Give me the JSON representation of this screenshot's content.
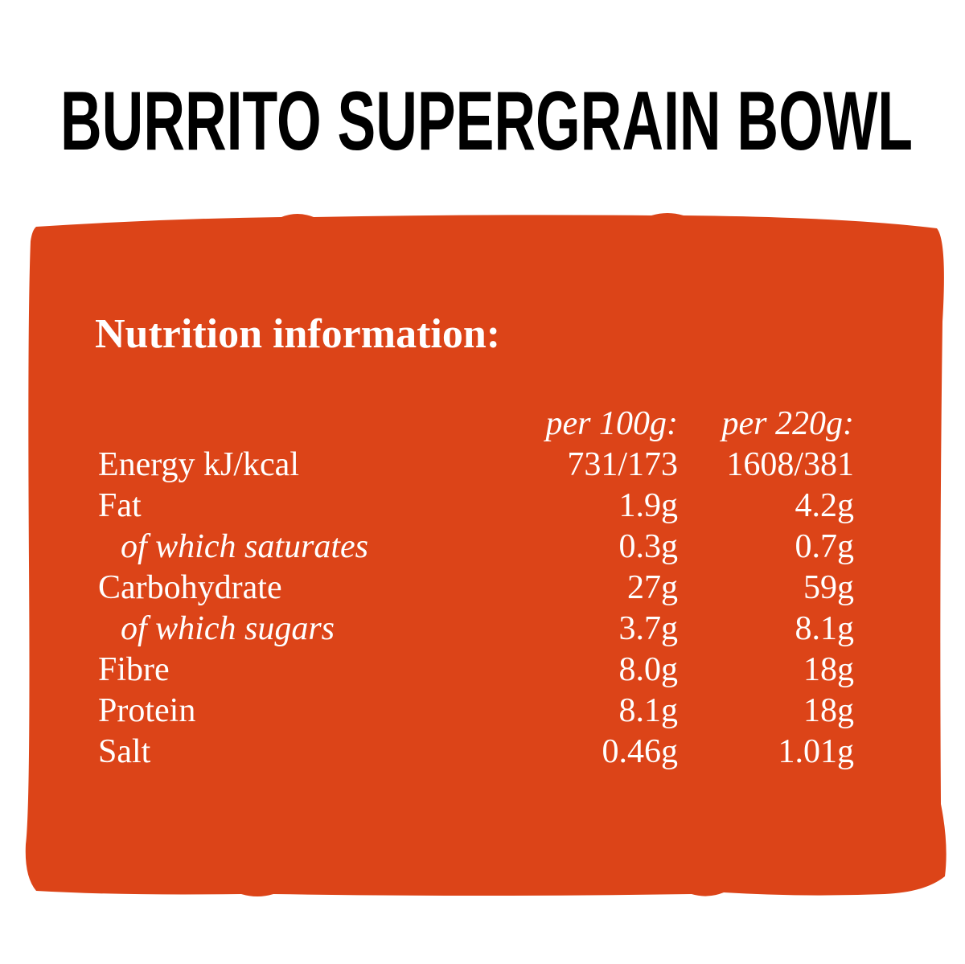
{
  "header": {
    "title": "BURRITO SUPERGRAIN BOWL"
  },
  "panel": {
    "heading": "Nutrition information:"
  },
  "table": {
    "columns": [
      "per 100g:",
      "per 220g:"
    ],
    "rows": [
      [
        "Energy kJ/kcal",
        "731/173",
        "1608/381"
      ],
      [
        "Fat",
        "1.9g",
        "4.2g"
      ],
      [
        "of which saturates",
        "0.3g",
        "0.7g"
      ],
      [
        "Carbohydrate",
        "27g",
        "59g"
      ],
      [
        "of which sugars",
        "3.7g",
        "8.1g"
      ],
      [
        "Fibre",
        "8.0g",
        "18g"
      ],
      [
        "Protein",
        "8.1g",
        "18g"
      ],
      [
        "Salt",
        "0.46g",
        "1.01g"
      ]
    ]
  }
}
